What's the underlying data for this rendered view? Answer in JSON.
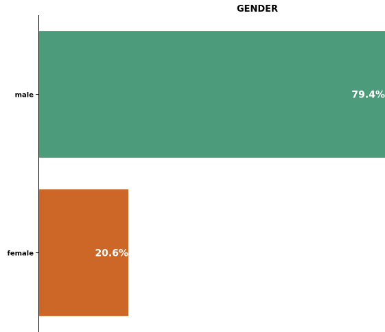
{
  "chart_data": {
    "type": "bar",
    "orientation": "horizontal",
    "title": "GENDER",
    "xlabel": "",
    "ylabel": "",
    "categories": [
      "male",
      "female"
    ],
    "values": [
      79.4,
      20.6
    ],
    "value_labels": [
      "79.4%",
      "20.6%"
    ],
    "colors": [
      "#4c9c7b",
      "#cc6727"
    ],
    "xlim": [
      0,
      79.4
    ],
    "grid": false,
    "legend": "none"
  }
}
